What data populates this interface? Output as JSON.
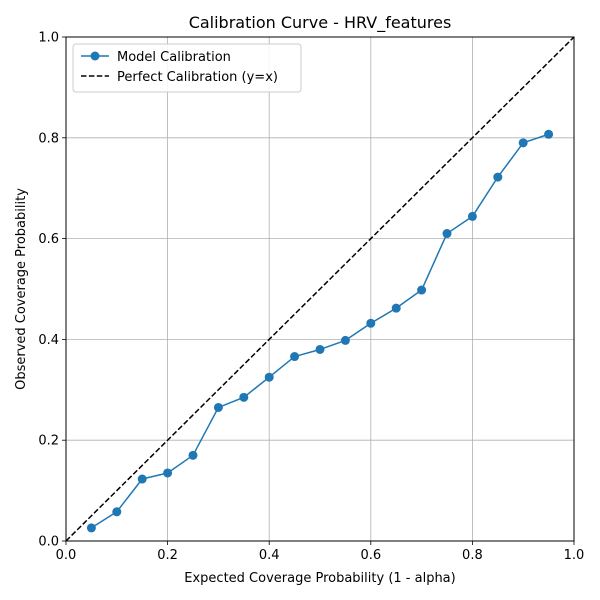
{
  "chart_data": {
    "type": "line",
    "title": "Calibration Curve - HRV_features",
    "xlabel": "Expected Coverage Probability (1 - alpha)",
    "ylabel": "Observed Coverage Probability",
    "xlim": [
      0,
      1
    ],
    "ylim": [
      0,
      1
    ],
    "xticks": [
      "0.0",
      "0.2",
      "0.4",
      "0.6",
      "0.8",
      "1.0"
    ],
    "yticks": [
      "0.0",
      "0.2",
      "0.4",
      "0.6",
      "0.8",
      "1.0"
    ],
    "grid": true,
    "legend_position": "top-left",
    "series": [
      {
        "name": "Model Calibration",
        "style": "line-with-markers",
        "color": "#1f77b4",
        "x": [
          0.05,
          0.1,
          0.15,
          0.2,
          0.25,
          0.3,
          0.35,
          0.4,
          0.45,
          0.5,
          0.55,
          0.6,
          0.65,
          0.7,
          0.75,
          0.8,
          0.85,
          0.9,
          0.95
        ],
        "y": [
          0.026,
          0.058,
          0.123,
          0.135,
          0.17,
          0.265,
          0.285,
          0.325,
          0.366,
          0.38,
          0.398,
          0.432,
          0.462,
          0.498,
          0.61,
          0.644,
          0.722,
          0.79,
          0.807
        ]
      },
      {
        "name": "Perfect Calibration (y=x)",
        "style": "dashed-line",
        "color": "#000000",
        "x": [
          0,
          1
        ],
        "y": [
          0,
          1
        ]
      }
    ]
  }
}
